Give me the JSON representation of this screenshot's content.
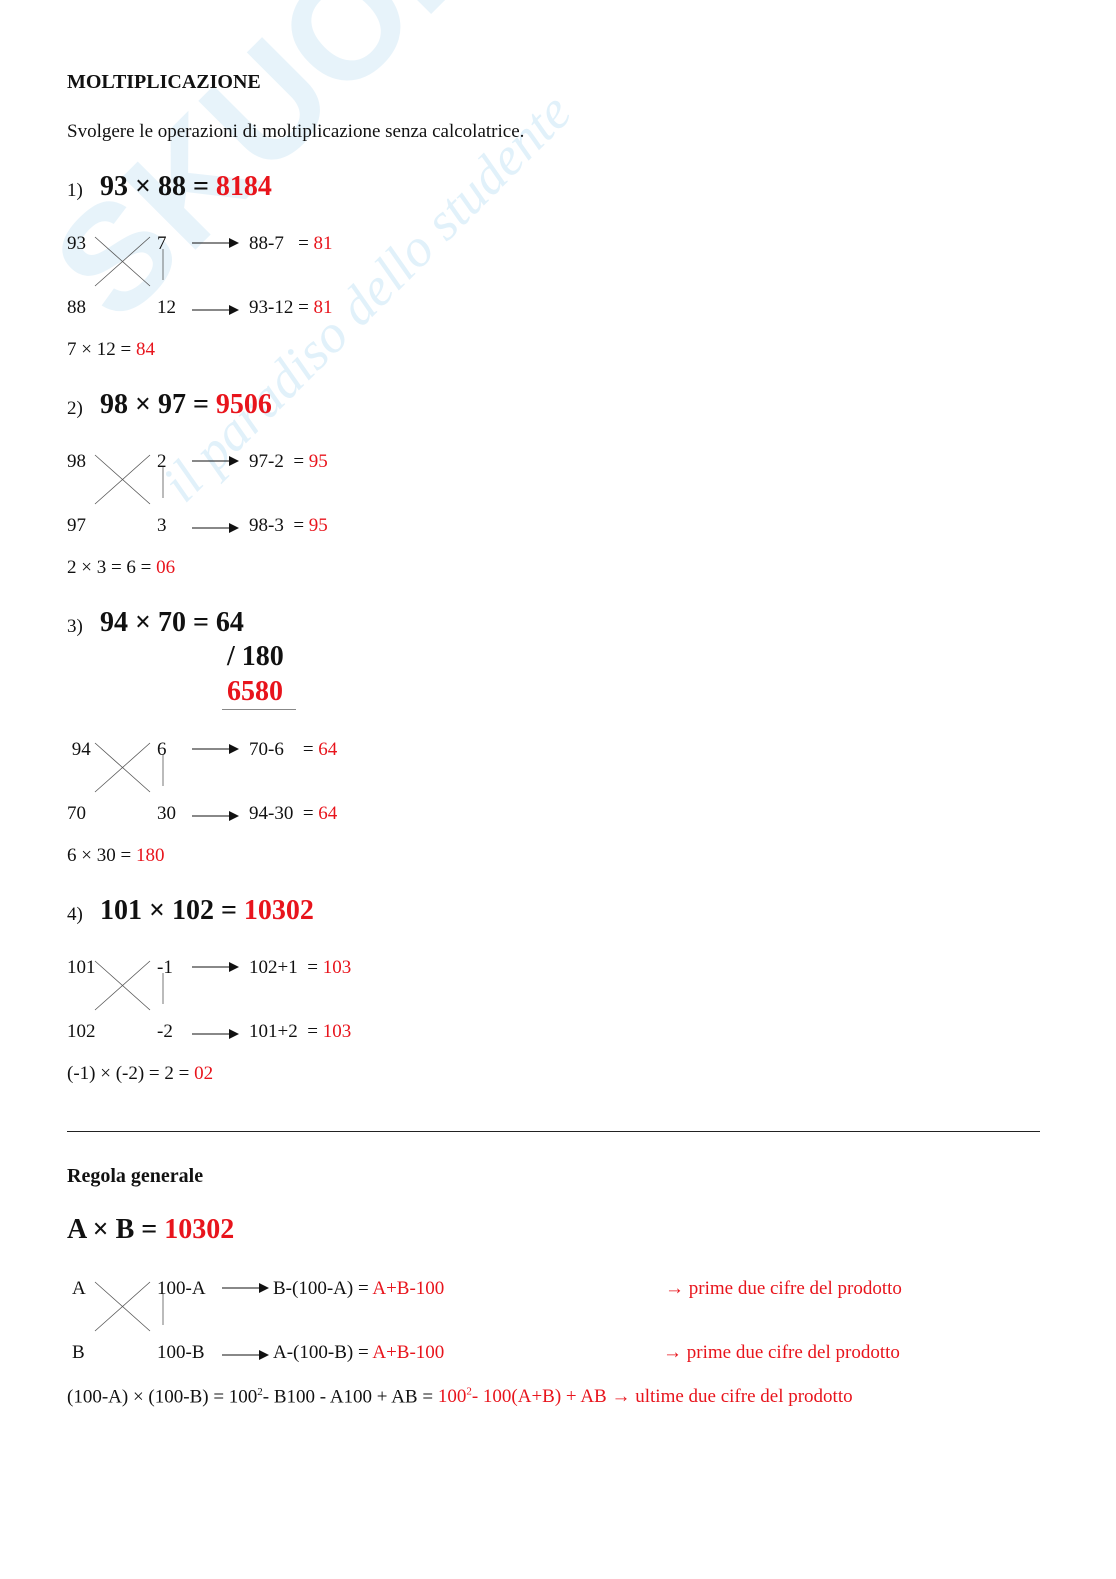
{
  "watermark": {
    "brand": "SKUOLA.net",
    "tagline": "il paradiso dello studente"
  },
  "title": "MOLTIPLICAZIONE",
  "instructions": "Svolgere le operazioni di moltiplicazione senza calcolatrice.",
  "examples": [
    {
      "num": "1)",
      "eq": "93 × 88 = ",
      "result": "8184",
      "top_left": "93",
      "top_right": "7",
      "top_expr": "88-7   = ",
      "top_val": "81",
      "bot_left": "88",
      "bot_right": "12",
      "bot_expr": "93-12 = ",
      "bot_val": "81",
      "prod": "7 × 12 = ",
      "prod_val": "84"
    },
    {
      "num": "2)",
      "eq": "98 × 97 = ",
      "result": "9506",
      "top_left": "98",
      "top_right": "2",
      "top_expr": "97-2  = ",
      "top_val": "95",
      "bot_left": "97",
      "bot_right": "3",
      "bot_expr": "98-3  = ",
      "bot_val": "95",
      "prod": "2 × 3 = 6 = ",
      "prod_val": "06"
    },
    {
      "num": "3)",
      "eq": "94 × 70 = 64",
      "result": "",
      "carry": "/ 180",
      "final": "6580",
      "top_left": " 94",
      "top_right": "6",
      "top_expr": "70-6    = ",
      "top_val": "64",
      "bot_left": "70",
      "bot_right": "30",
      "bot_expr": "94-30  = ",
      "bot_val": "64",
      "prod": "6 × 30 = ",
      "prod_val": "180"
    },
    {
      "num": "4)",
      "eq": "101 × 102 = ",
      "result": "10302",
      "top_left": "101",
      "top_right": "-1",
      "top_expr": "102+1  = ",
      "top_val": "103",
      "bot_left": "102",
      "bot_right": "-2",
      "bot_expr": "101+2  = ",
      "bot_val": "103",
      "prod": "(-1) × (-2) = 2 = ",
      "prod_val": "02"
    }
  ],
  "rule": {
    "heading": "Regola generale",
    "eq": "A × B = ",
    "result": "10302",
    "top_left": "A",
    "top_right": "100-A",
    "top_expr": "B-(100-A) = ",
    "top_val": "A+B-100",
    "top_note": "→ prime due cifre del prodotto",
    "bot_left": "B",
    "bot_right": "100-B",
    "bot_expr": "A-(100-B) = ",
    "bot_val": "A+B-100",
    "bot_note": "→ prime due cifre del prodotto",
    "formula_a": "(100-A) × (100-B) = 100",
    "sup": "2",
    "formula_b": "- B100 - A100 + AB = ",
    "formula_red_a": "100",
    "formula_red_b": "- 100(A+B) + AB ",
    "formula_note": "→ ultime due cifre del prodotto"
  },
  "colors": {
    "accent": "#e8141c",
    "text": "#111111"
  }
}
